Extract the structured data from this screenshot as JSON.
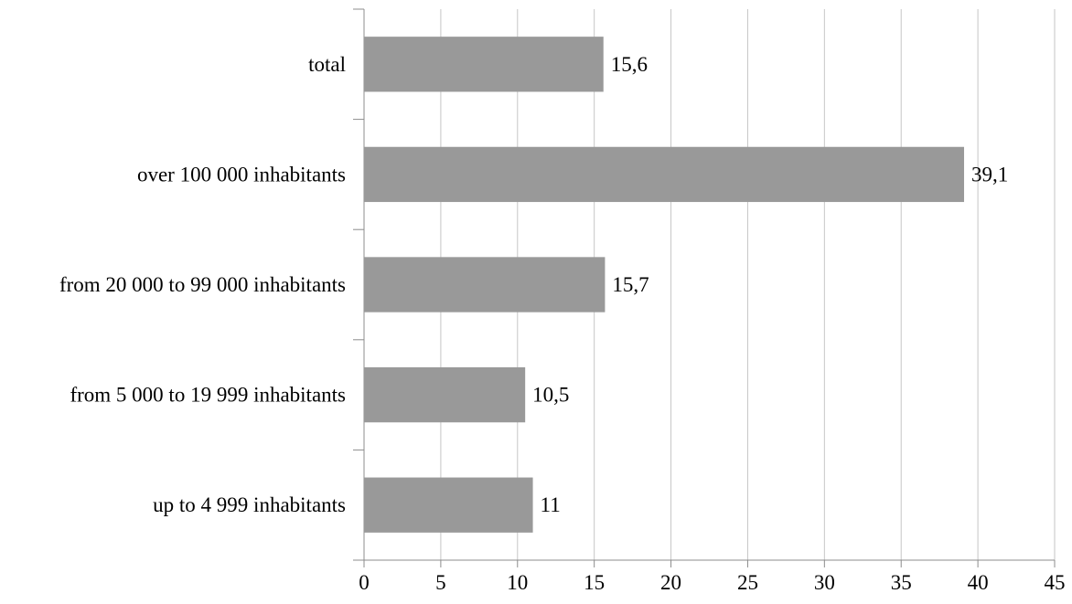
{
  "chart_data": {
    "type": "bar",
    "orientation": "horizontal",
    "title": "",
    "xlabel": "",
    "ylabel": "",
    "categories": [
      "total",
      "over 100 000 inhabitants",
      "from 20 000 to 99 000 inhabitants",
      "from 5 000 to 19 999 inhabitants",
      "up to 4 999 inhabitants"
    ],
    "values": [
      15.6,
      39.1,
      15.7,
      10.5,
      11
    ],
    "value_labels": [
      "15,6",
      "39,1",
      "15,7",
      "10,5",
      "11"
    ],
    "xlim": [
      0,
      45
    ],
    "xticks": [
      0,
      5,
      10,
      15,
      20,
      25,
      30,
      35,
      40,
      45
    ],
    "grid": "vertical",
    "legend": "none",
    "colors": {
      "bar": "#999999",
      "grid": "#c6c6c6",
      "axis": "#8c8c8c",
      "text": "#000000"
    }
  }
}
